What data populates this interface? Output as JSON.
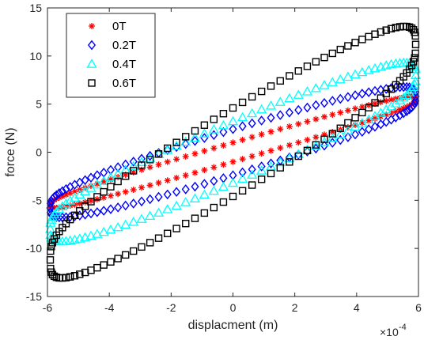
{
  "chart_data": {
    "type": "scatter",
    "title": "",
    "xlabel": "displacment (m)",
    "ylabel": "force (N)",
    "x_scale_label": "×10",
    "x_scale_exponent": "-4",
    "xlim": [
      -6,
      6
    ],
    "ylim": [
      -15,
      15
    ],
    "xticks": [
      "-6",
      "-4",
      "-2",
      "0",
      "2",
      "4",
      "6"
    ],
    "yticks": [
      "-15",
      "-10",
      "-5",
      "0",
      "5",
      "10",
      "15"
    ],
    "grid": false,
    "legend_position": "top-left",
    "series": [
      {
        "name": "0T",
        "marker": "asterisk",
        "color": "#ff0000",
        "loop": {
          "F_at_xmax": 5.5,
          "F_at_xmin": -5.5,
          "F_at_x0_upper": 1.0,
          "F_at_x0_lower": -1.0
        }
      },
      {
        "name": "0.2T",
        "marker": "diamond",
        "color": "#0000ff",
        "loop": {
          "F_at_xmax": 5.8,
          "F_at_xmin": -5.8,
          "F_at_x0_upper": 2.4,
          "F_at_x0_lower": -2.4
        }
      },
      {
        "name": "0.4T",
        "marker": "triangle",
        "color": "#00ffff",
        "loop": {
          "F_at_xmax": 8.0,
          "F_at_xmin": -8.0,
          "F_at_x0_upper": 3.2,
          "F_at_x0_lower": -3.2
        }
      },
      {
        "name": "0.6T",
        "marker": "square",
        "color": "#000000",
        "loop": {
          "F_at_xmax": 11.2,
          "F_at_xmin": -11.2,
          "F_at_x0_upper": 4.6,
          "F_at_x0_lower": -4.6
        }
      }
    ]
  }
}
